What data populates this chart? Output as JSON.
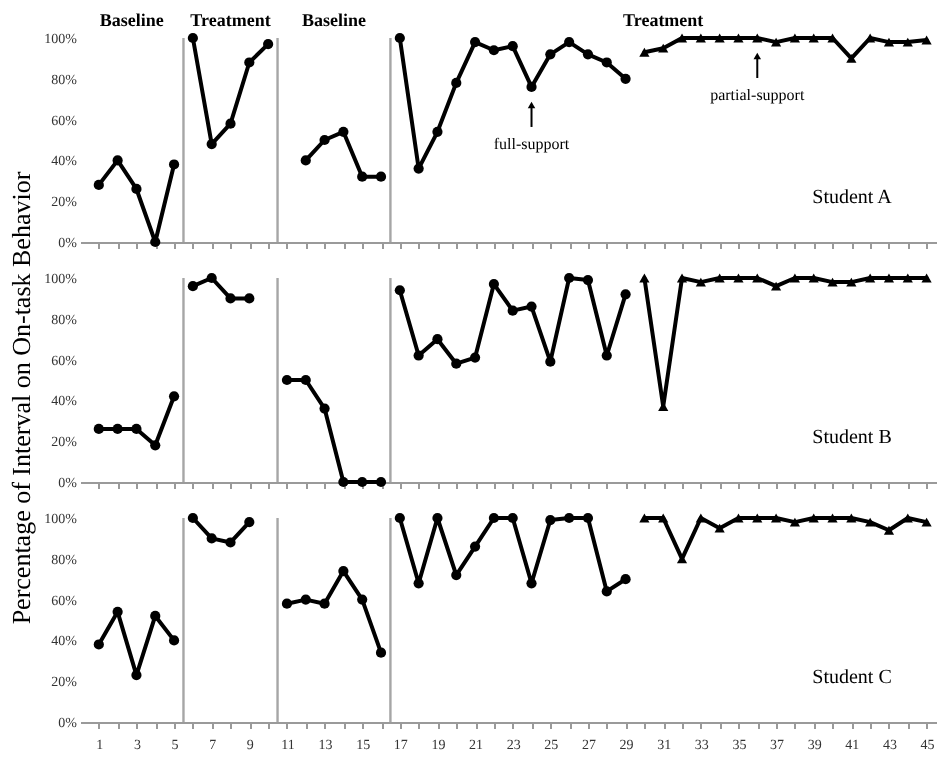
{
  "chart_data": [
    {
      "type": "line",
      "xlim": [
        0,
        45.5
      ],
      "ylim": [
        0,
        100
      ],
      "tick_labels": "y",
      "xticks": [
        1,
        {
          "value": 2,
          "label": null
        },
        3,
        {
          "value": 4,
          "label": null
        },
        5,
        {
          "value": 6,
          "label": null
        },
        7,
        {
          "value": 8,
          "label": null
        },
        9,
        {
          "value": 10,
          "label": null
        },
        11,
        {
          "value": 12,
          "label": null
        },
        13,
        {
          "value": 14,
          "label": null
        },
        15,
        {
          "value": 16,
          "label": null
        },
        17,
        {
          "value": 18,
          "label": null
        },
        19,
        {
          "value": 20,
          "label": null
        },
        21,
        {
          "value": 22,
          "label": null
        },
        23,
        {
          "value": 24,
          "label": null
        },
        25,
        {
          "value": 26,
          "label": null
        },
        27,
        {
          "value": 28,
          "label": null
        },
        29,
        {
          "value": 30,
          "label": null
        },
        31,
        {
          "value": 32,
          "label": null
        },
        33,
        {
          "value": 34,
          "label": null
        },
        35,
        {
          "value": 36,
          "label": null
        },
        37,
        {
          "value": 38,
          "label": null
        },
        39,
        {
          "value": 40,
          "label": null
        },
        41,
        {
          "value": 42,
          "label": null
        },
        43,
        {
          "value": 44,
          "label": null
        },
        45
      ],
      "yticks": [
        {
          "value": 0,
          "label": "0%"
        },
        {
          "value": 20,
          "label": "20%"
        },
        {
          "value": 40,
          "label": "40%"
        },
        {
          "value": 60,
          "label": "60%"
        },
        {
          "value": 80,
          "label": "80%"
        },
        {
          "value": 100,
          "label": "100%"
        }
      ],
      "series": [
        {
          "color": "#000000",
          "marker": "circle",
          "x": [
            1,
            2,
            3,
            4,
            5
          ],
          "values": [
            28,
            40,
            26,
            0,
            38
          ]
        },
        {
          "color": "#000000",
          "marker": "circle",
          "x": [
            6,
            7,
            8,
            9,
            10
          ],
          "values": [
            100,
            48,
            58,
            88,
            97
          ]
        },
        {
          "color": "#000000",
          "marker": "circle",
          "x": [
            12,
            13,
            14,
            15,
            16
          ],
          "values": [
            40,
            50,
            54,
            32,
            32
          ]
        },
        {
          "color": "#000000",
          "marker": "circle",
          "x": [
            17,
            18,
            19,
            20,
            21,
            22,
            23,
            24,
            25,
            26,
            27,
            28,
            29
          ],
          "values": [
            100,
            36,
            54,
            78,
            98,
            94,
            96,
            76,
            92,
            98,
            92,
            88,
            80
          ]
        },
        {
          "color": "#000000",
          "marker": "triangle",
          "x": [
            30,
            31,
            32,
            33,
            34,
            35,
            36,
            37,
            38,
            39,
            40,
            41,
            42,
            43,
            44,
            45
          ],
          "values": [
            93,
            95,
            100,
            100,
            100,
            100,
            100,
            98,
            100,
            100,
            100,
            90,
            100,
            98,
            98,
            99
          ]
        }
      ],
      "ref_lines": [
        {
          "axis": "x",
          "value": 5.5,
          "color": "#a6a6a6"
        },
        {
          "axis": "x",
          "value": 10.5,
          "color": "#a6a6a6"
        },
        {
          "axis": "x",
          "value": 16.5,
          "color": "#a6a6a6"
        }
      ],
      "annotations": [
        "Baseline",
        "Treatment",
        "Baseline",
        "Treatment",
        "Student A",
        {
          "text": "full-support",
          "x": 24,
          "y": 76
        },
        {
          "text": "partial-support",
          "x": 36,
          "y": 100
        }
      ]
    },
    {
      "type": "line",
      "xlim": [
        0,
        45.5
      ],
      "ylim": [
        0,
        100
      ],
      "tick_labels": "y",
      "ylabel": "Percentage of Interval on On-task Behavior",
      "xticks": [
        1,
        {
          "value": 2,
          "label": null
        },
        3,
        {
          "value": 4,
          "label": null
        },
        5,
        {
          "value": 6,
          "label": null
        },
        7,
        {
          "value": 8,
          "label": null
        },
        9,
        {
          "value": 10,
          "label": null
        },
        11,
        {
          "value": 12,
          "label": null
        },
        13,
        {
          "value": 14,
          "label": null
        },
        15,
        {
          "value": 16,
          "label": null
        },
        17,
        {
          "value": 18,
          "label": null
        },
        19,
        {
          "value": 20,
          "label": null
        },
        21,
        {
          "value": 22,
          "label": null
        },
        23,
        {
          "value": 24,
          "label": null
        },
        25,
        {
          "value": 26,
          "label": null
        },
        27,
        {
          "value": 28,
          "label": null
        },
        29,
        {
          "value": 30,
          "label": null
        },
        31,
        {
          "value": 32,
          "label": null
        },
        33,
        {
          "value": 34,
          "label": null
        },
        35,
        {
          "value": 36,
          "label": null
        },
        37,
        {
          "value": 38,
          "label": null
        },
        39,
        {
          "value": 40,
          "label": null
        },
        41,
        {
          "value": 42,
          "label": null
        },
        43,
        {
          "value": 44,
          "label": null
        },
        45
      ],
      "yticks": [
        {
          "value": 0,
          "label": "0%"
        },
        {
          "value": 20,
          "label": "20%"
        },
        {
          "value": 40,
          "label": "40%"
        },
        {
          "value": 60,
          "label": "60%"
        },
        {
          "value": 80,
          "label": "80%"
        },
        {
          "value": 100,
          "label": "100%"
        }
      ],
      "series": [
        {
          "color": "#000000",
          "marker": "circle",
          "x": [
            1,
            2,
            3,
            4,
            5
          ],
          "values": [
            26,
            26,
            26,
            18,
            42
          ]
        },
        {
          "color": "#000000",
          "marker": "circle",
          "x": [
            6,
            7,
            8,
            9
          ],
          "values": [
            96,
            100,
            90,
            90
          ]
        },
        {
          "color": "#000000",
          "marker": "circle",
          "x": [
            11,
            12,
            13,
            14,
            15,
            16
          ],
          "values": [
            50,
            50,
            36,
            0,
            0,
            0
          ]
        },
        {
          "color": "#000000",
          "marker": "circle",
          "x": [
            17,
            18,
            19,
            20,
            21,
            22,
            23,
            24,
            25,
            26,
            27,
            28,
            29
          ],
          "values": [
            94,
            62,
            70,
            58,
            61,
            97,
            84,
            86,
            59,
            100,
            99,
            62,
            92
          ]
        },
        {
          "color": "#000000",
          "marker": "triangle",
          "x": [
            30,
            31,
            32,
            33,
            34,
            35,
            36,
            37,
            38,
            39,
            40,
            41,
            42,
            43,
            44,
            45
          ],
          "values": [
            100,
            37,
            100,
            98,
            100,
            100,
            100,
            96,
            100,
            100,
            98,
            98,
            100,
            100,
            100,
            100
          ]
        }
      ],
      "ref_lines": [
        {
          "axis": "x",
          "value": 5.5,
          "color": "#a6a6a6"
        },
        {
          "axis": "x",
          "value": 10.5,
          "color": "#a6a6a6"
        },
        {
          "axis": "x",
          "value": 16.5,
          "color": "#a6a6a6"
        }
      ],
      "annotations": [
        "Student B"
      ]
    },
    {
      "type": "line",
      "xlim": [
        0,
        45.5
      ],
      "ylim": [
        0,
        100
      ],
      "xticks": [
        1,
        {
          "value": 2,
          "label": null
        },
        3,
        {
          "value": 4,
          "label": null
        },
        5,
        {
          "value": 6,
          "label": null
        },
        7,
        {
          "value": 8,
          "label": null
        },
        9,
        {
          "value": 10,
          "label": null
        },
        11,
        {
          "value": 12,
          "label": null
        },
        13,
        {
          "value": 14,
          "label": null
        },
        15,
        {
          "value": 16,
          "label": null
        },
        17,
        {
          "value": 18,
          "label": null
        },
        19,
        {
          "value": 20,
          "label": null
        },
        21,
        {
          "value": 22,
          "label": null
        },
        23,
        {
          "value": 24,
          "label": null
        },
        25,
        {
          "value": 26,
          "label": null
        },
        27,
        {
          "value": 28,
          "label": null
        },
        29,
        {
          "value": 30,
          "label": null
        },
        31,
        {
          "value": 32,
          "label": null
        },
        33,
        {
          "value": 34,
          "label": null
        },
        35,
        {
          "value": 36,
          "label": null
        },
        37,
        {
          "value": 38,
          "label": null
        },
        39,
        {
          "value": 40,
          "label": null
        },
        41,
        {
          "value": 42,
          "label": null
        },
        43,
        {
          "value": 44,
          "label": null
        },
        45
      ],
      "yticks": [
        {
          "value": 0,
          "label": "0%"
        },
        {
          "value": 20,
          "label": "20%"
        },
        {
          "value": 40,
          "label": "40%"
        },
        {
          "value": 60,
          "label": "60%"
        },
        {
          "value": 80,
          "label": "80%"
        },
        {
          "value": 100,
          "label": "100%"
        }
      ],
      "series": [
        {
          "color": "#000000",
          "marker": "circle",
          "x": [
            1,
            2,
            3,
            4,
            5
          ],
          "values": [
            38,
            54,
            23,
            52,
            40
          ]
        },
        {
          "color": "#000000",
          "marker": "circle",
          "x": [
            6,
            7,
            8,
            9
          ],
          "values": [
            100,
            90,
            88,
            98
          ]
        },
        {
          "color": "#000000",
          "marker": "circle",
          "x": [
            11,
            12,
            13,
            14,
            15,
            16
          ],
          "values": [
            58,
            60,
            58,
            74,
            60,
            34
          ]
        },
        {
          "color": "#000000",
          "marker": "circle",
          "x": [
            17,
            18,
            19,
            20,
            21,
            22,
            23,
            24,
            25,
            26,
            27,
            28,
            29
          ],
          "values": [
            100,
            68,
            100,
            72,
            86,
            100,
            100,
            68,
            99,
            100,
            100,
            64,
            70
          ]
        },
        {
          "color": "#000000",
          "marker": "triangle",
          "x": [
            30,
            31,
            32,
            33,
            34,
            35,
            36,
            37,
            38,
            39,
            40,
            41,
            42,
            43,
            44,
            45
          ],
          "values": [
            100,
            100,
            80,
            100,
            95,
            100,
            100,
            100,
            98,
            100,
            100,
            100,
            98,
            94,
            100,
            98
          ]
        }
      ],
      "ref_lines": [
        {
          "axis": "x",
          "value": 5.5,
          "color": "#a6a6a6"
        },
        {
          "axis": "x",
          "value": 10.5,
          "color": "#a6a6a6"
        },
        {
          "axis": "x",
          "value": 16.5,
          "color": "#a6a6a6"
        }
      ],
      "annotations": [
        "Student C"
      ]
    }
  ]
}
